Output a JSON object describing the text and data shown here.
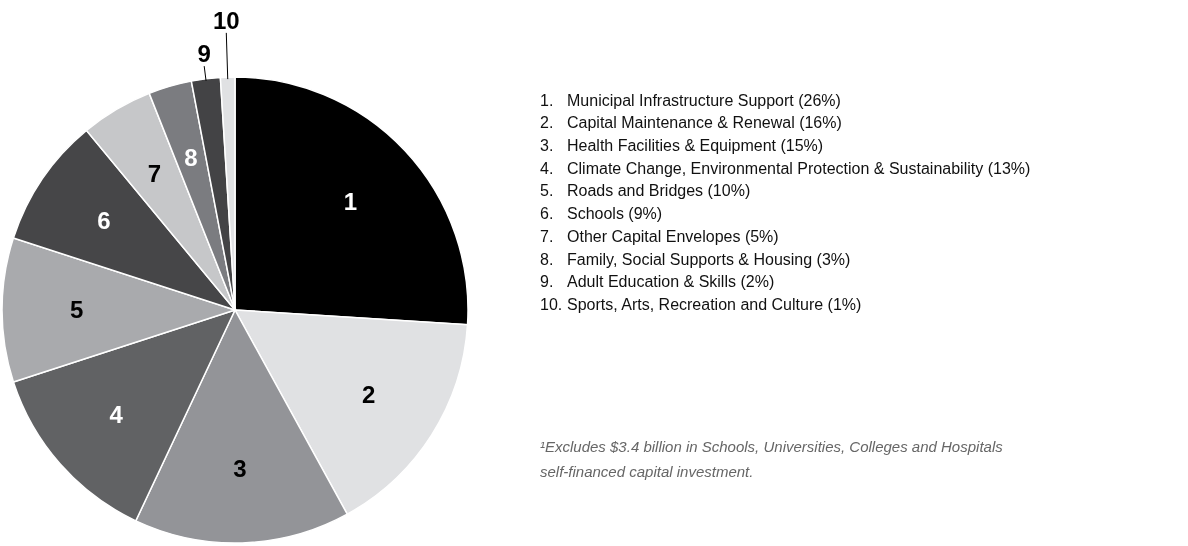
{
  "chart_data": {
    "type": "pie",
    "categories": [
      "1",
      "2",
      "3",
      "4",
      "5",
      "6",
      "7",
      "8",
      "9",
      "10"
    ],
    "values": [
      26,
      16,
      15,
      13,
      10,
      9,
      5,
      3,
      2,
      1
    ],
    "colors": [
      "#000000",
      "#e0e1e3",
      "#939498",
      "#616264",
      "#a9aaad",
      "#464648",
      "#c6c7c9",
      "#7b7c80",
      "#434345",
      "#e0e1e3"
    ],
    "annotations": [
      "1. Municipal Infrastructure Support (26%)",
      "2. Capital Maintenance & Renewal (16%)",
      "3. Health Facilities & Equipment (15%)",
      "4. Climate Change, Environmental Protection & Sustainability (13%)",
      "5. Roads and Bridges (10%)",
      "6. Schools (9%)",
      "7. Other Capital Envelopes (5%)",
      "8. Family, Social Supports & Housing (3%)",
      "9. Adult Education & Skills (2%)",
      "10. Sports, Arts, Recreation and Culture (1%)",
      "¹Excludes $3.4 billion in Schools, Universities, Colleges and Hospitals self-financed capital investment."
    ]
  }
}
